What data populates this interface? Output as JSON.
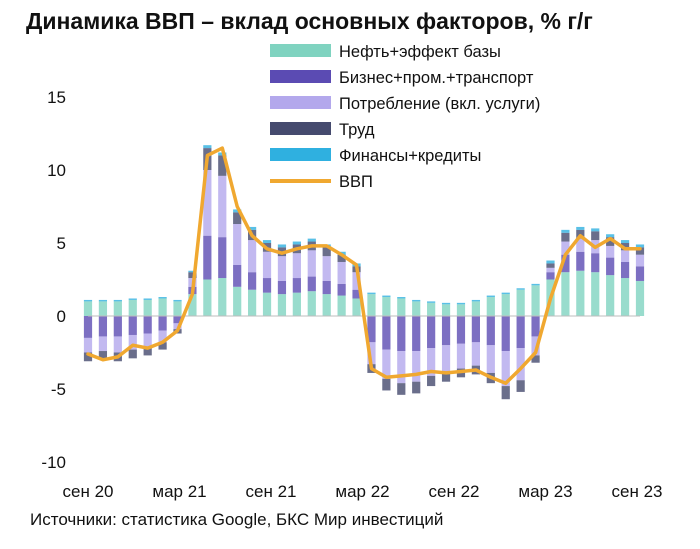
{
  "title": "Динамика ВВП – вклад основных факторов, % г/г",
  "source": "Источники: статистика Google, БКС Мир инвестиций",
  "chart_data": {
    "type": "bar",
    "stacked": true,
    "title": "Динамика ВВП – вклад основных факторов, % г/г",
    "xlabel": "",
    "ylabel": "",
    "ylim": [
      -10,
      15
    ],
    "yticks": [
      -10,
      -5,
      0,
      5,
      10,
      15
    ],
    "xticks": [
      "сен 20",
      "мар 21",
      "сен 21",
      "мар 22",
      "сен 22",
      "мар 23",
      "сен 23"
    ],
    "grid": false,
    "legend_position": "top-right",
    "x": [
      "2020-08",
      "2020-09",
      "2020-10",
      "2020-11",
      "2020-12",
      "2021-01",
      "2021-02",
      "2021-03",
      "2021-04",
      "2021-05",
      "2021-06",
      "2021-07",
      "2021-08",
      "2021-09",
      "2021-10",
      "2021-11",
      "2021-12",
      "2022-01",
      "2022-02",
      "2022-03",
      "2022-04",
      "2022-05",
      "2022-06",
      "2022-07",
      "2022-08",
      "2022-09",
      "2022-10",
      "2022-11",
      "2022-12",
      "2023-01",
      "2023-02",
      "2023-03",
      "2023-04",
      "2023-05",
      "2023-06",
      "2023-07",
      "2023-08",
      "2023-09"
    ],
    "series": [
      {
        "name": "Нефть+эффект базы",
        "color": "#7fd3c0",
        "kind": "bar",
        "values": [
          1.0,
          1.0,
          1.0,
          1.1,
          1.1,
          1.2,
          1.0,
          1.5,
          2.5,
          2.6,
          2.0,
          1.8,
          1.6,
          1.5,
          1.6,
          1.7,
          1.5,
          1.4,
          1.2,
          1.5,
          1.3,
          1.2,
          1.0,
          0.9,
          0.8,
          0.8,
          1.0,
          1.3,
          1.5,
          1.8,
          2.1,
          2.5,
          3.0,
          3.1,
          3.0,
          2.8,
          2.6,
          2.4
        ]
      },
      {
        "name": "Бизнес+пром.+транспорт",
        "color": "#5b4bb3",
        "kind": "bar",
        "values": [
          -1.5,
          -1.4,
          -1.4,
          -1.3,
          -1.2,
          -1.0,
          -0.5,
          0.5,
          3.0,
          2.8,
          1.5,
          1.2,
          1.0,
          0.9,
          1.0,
          1.0,
          0.9,
          0.8,
          0.6,
          -1.8,
          -2.3,
          -2.4,
          -2.4,
          -2.2,
          -2.0,
          -1.9,
          -1.8,
          -2.0,
          -2.4,
          -2.2,
          -1.4,
          0.5,
          1.2,
          1.3,
          1.3,
          1.2,
          1.1,
          1.0
        ]
      },
      {
        "name": "Потребление (вкл. услуги)",
        "color": "#b3a8ec",
        "kind": "bar",
        "values": [
          -1.0,
          -1.0,
          -1.1,
          -1.0,
          -1.0,
          -0.8,
          -0.4,
          0.6,
          4.5,
          4.2,
          2.8,
          2.2,
          1.8,
          1.7,
          1.7,
          1.8,
          1.7,
          1.5,
          1.2,
          -1.5,
          -2.0,
          -2.2,
          -2.1,
          -1.9,
          -1.8,
          -1.7,
          -1.6,
          -1.9,
          -2.4,
          -2.2,
          -1.3,
          0.3,
          0.9,
          0.9,
          0.9,
          0.8,
          0.8,
          0.8
        ]
      },
      {
        "name": "Труд",
        "color": "#454a6e",
        "kind": "bar",
        "values": [
          -0.6,
          -0.6,
          -0.6,
          -0.6,
          -0.5,
          -0.5,
          -0.3,
          0.4,
          1.5,
          1.4,
          0.8,
          0.7,
          0.6,
          0.6,
          0.6,
          0.6,
          0.6,
          0.5,
          0.4,
          -0.6,
          -0.8,
          -0.8,
          -0.8,
          -0.7,
          -0.7,
          -0.6,
          -0.6,
          -0.7,
          -0.9,
          -0.8,
          -0.5,
          0.3,
          0.6,
          0.6,
          0.6,
          0.6,
          0.5,
          0.5
        ]
      },
      {
        "name": "Финансы+кредиты",
        "color": "#2fb0e0",
        "kind": "bar",
        "values": [
          0.1,
          0.1,
          0.1,
          0.1,
          0.1,
          0.1,
          0.1,
          0.1,
          0.2,
          0.2,
          0.2,
          0.2,
          0.2,
          0.2,
          0.2,
          0.2,
          0.2,
          0.2,
          0.2,
          0.1,
          0.1,
          0.1,
          0.1,
          0.1,
          0.1,
          0.1,
          0.1,
          0.1,
          0.1,
          0.1,
          0.1,
          0.2,
          0.2,
          0.2,
          0.2,
          0.2,
          0.2,
          0.2
        ]
      },
      {
        "name": "ВВП",
        "color": "#f0a830",
        "kind": "line",
        "values": [
          -2.6,
          -3.0,
          -2.8,
          -2.0,
          -2.2,
          -1.8,
          -1.0,
          1.5,
          11.0,
          11.5,
          7.5,
          5.5,
          4.6,
          4.3,
          4.6,
          4.8,
          4.8,
          4.2,
          3.5,
          -3.6,
          -4.2,
          -4.1,
          -4.0,
          -3.8,
          -3.9,
          -3.8,
          -3.7,
          -4.2,
          -4.6,
          -3.6,
          -2.5,
          1.2,
          4.2,
          5.5,
          4.7,
          5.3,
          4.6,
          4.6
        ]
      }
    ]
  }
}
